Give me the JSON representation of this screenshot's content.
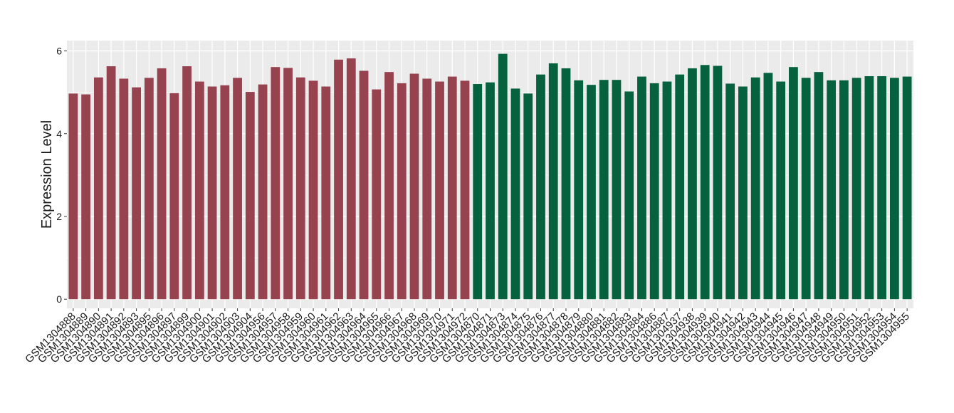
{
  "chart_data": {
    "type": "bar",
    "title": "",
    "xlabel": "",
    "ylabel": "Expression Level",
    "ylim": [
      -0.22,
      6.25
    ],
    "yticks": [
      0,
      2,
      4,
      6
    ],
    "grid": true,
    "legend": "none",
    "colors": {
      "panel_background": "#ebebeb",
      "gridline": "#ffffff",
      "group_a": "#96424f",
      "group_b": "#05613e"
    },
    "categories": [
      "GSM1304888",
      "GSM1304889",
      "GSM1304890",
      "GSM1304891",
      "GSM1304892",
      "GSM1304893",
      "GSM1304895",
      "GSM1304896",
      "GSM1304897",
      "GSM1304899",
      "GSM1304900",
      "GSM1304901",
      "GSM1304902",
      "GSM1304903",
      "GSM1304904",
      "GSM1304956",
      "GSM1304957",
      "GSM1304958",
      "GSM1304959",
      "GSM1304960",
      "GSM1304961",
      "GSM1304962",
      "GSM1304963",
      "GSM1304964",
      "GSM1304965",
      "GSM1304966",
      "GSM1304967",
      "GSM1304968",
      "GSM1304969",
      "GSM1304970",
      "GSM1304971",
      "GSM1304972",
      "GSM1304870",
      "GSM1304871",
      "GSM1304873",
      "GSM1304874",
      "GSM1304875",
      "GSM1304876",
      "GSM1304877",
      "GSM1304878",
      "GSM1304879",
      "GSM1304880",
      "GSM1304881",
      "GSM1304882",
      "GSM1304883",
      "GSM1304884",
      "GSM1304886",
      "GSM1304887",
      "GSM1304937",
      "GSM1304938",
      "GSM1304939",
      "GSM1304940",
      "GSM1304941",
      "GSM1304942",
      "GSM1304943",
      "GSM1304944",
      "GSM1304945",
      "GSM1304946",
      "GSM1304947",
      "GSM1304948",
      "GSM1304949",
      "GSM1304950",
      "GSM1304951",
      "GSM1304952",
      "GSM1304953",
      "GSM1304954",
      "GSM1304955"
    ],
    "values": [
      4.97,
      4.95,
      5.36,
      5.63,
      5.33,
      5.12,
      5.35,
      5.58,
      4.98,
      5.63,
      5.26,
      5.14,
      5.17,
      5.35,
      5.01,
      5.19,
      5.61,
      5.59,
      5.36,
      5.28,
      5.14,
      5.79,
      5.82,
      5.52,
      5.07,
      5.49,
      5.22,
      5.45,
      5.33,
      5.26,
      5.38,
      5.28,
      5.2,
      5.24,
      5.93,
      5.09,
      4.97,
      5.43,
      5.7,
      5.58,
      5.29,
      5.18,
      5.3,
      5.3,
      5.02,
      5.38,
      5.22,
      5.26,
      5.43,
      5.58,
      5.66,
      5.64,
      5.21,
      5.14,
      5.36,
      5.47,
      5.26,
      5.61,
      5.35,
      5.49,
      5.29,
      5.29,
      5.35,
      5.39,
      5.39,
      5.35,
      5.38
    ],
    "groups": [
      "a",
      "a",
      "a",
      "a",
      "a",
      "a",
      "a",
      "a",
      "a",
      "a",
      "a",
      "a",
      "a",
      "a",
      "a",
      "a",
      "a",
      "a",
      "a",
      "a",
      "a",
      "a",
      "a",
      "a",
      "a",
      "a",
      "a",
      "a",
      "a",
      "a",
      "a",
      "a",
      "b",
      "b",
      "b",
      "b",
      "b",
      "b",
      "b",
      "b",
      "b",
      "b",
      "b",
      "b",
      "b",
      "b",
      "b",
      "b",
      "b",
      "b",
      "b",
      "b",
      "b",
      "b",
      "b",
      "b",
      "b",
      "b",
      "b",
      "b",
      "b",
      "b",
      "b",
      "b",
      "b",
      "b",
      "b"
    ]
  }
}
